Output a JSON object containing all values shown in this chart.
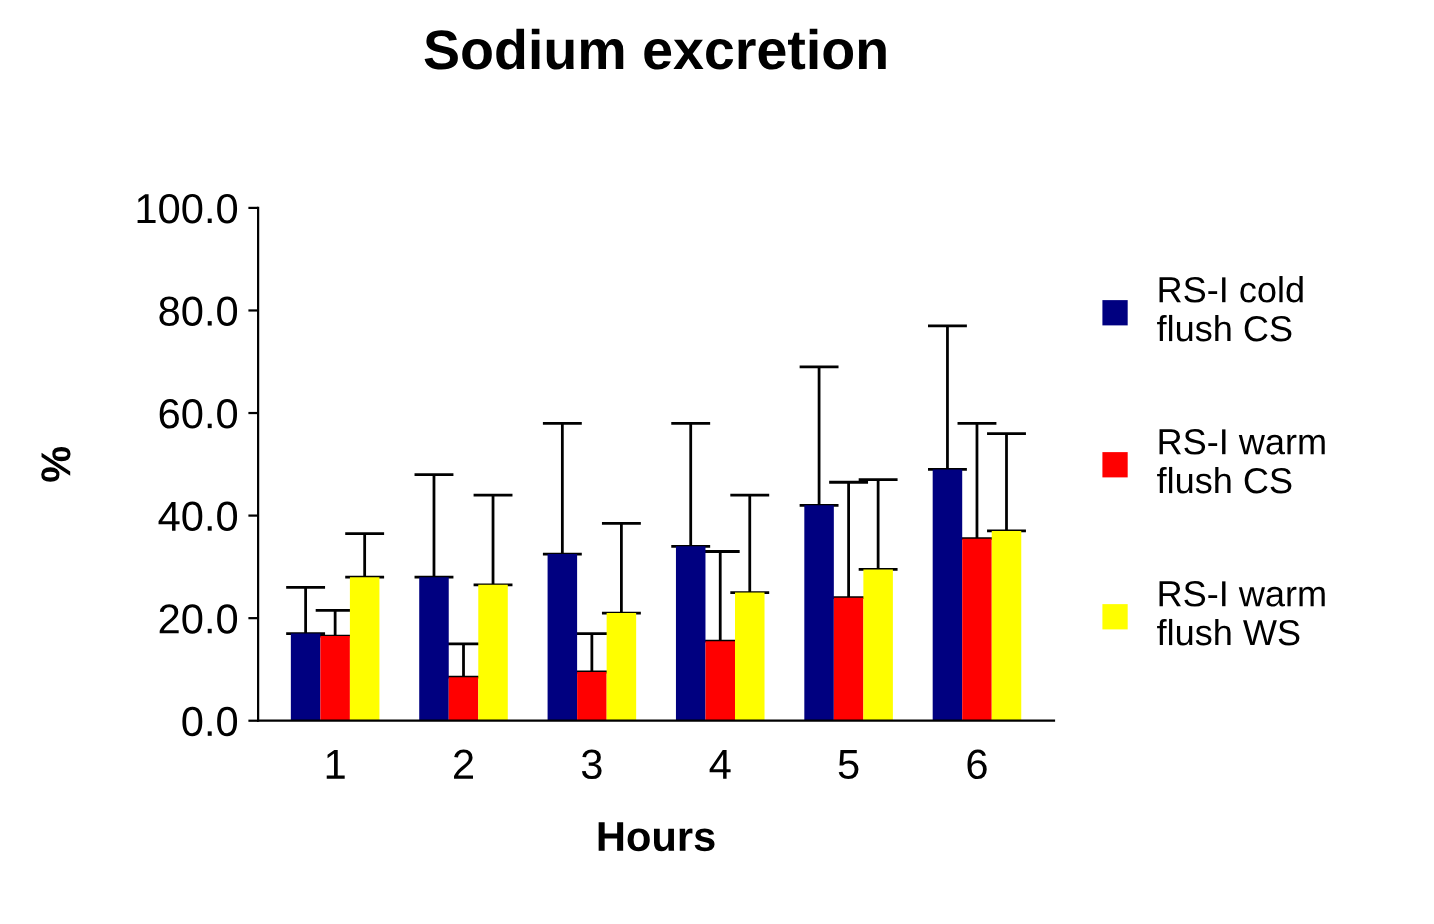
{
  "chart_data": {
    "type": "bar",
    "title": "Sodium excretion",
    "xlabel": "Hours",
    "ylabel": "%",
    "categories": [
      "1",
      "2",
      "3",
      "4",
      "5",
      "6"
    ],
    "series": [
      {
        "name": "RS-I cold\nflush CS",
        "color": "#000080",
        "values": [
          17,
          28,
          32.5,
          34,
          42,
          49
        ],
        "errors": [
          [
            17,
            26
          ],
          [
            28,
            48
          ],
          [
            32.5,
            58
          ],
          [
            34,
            58
          ],
          [
            42,
            69
          ],
          [
            49,
            77
          ]
        ]
      },
      {
        "name": "RS-I warm\nflush CS",
        "color": "#ff0000",
        "values": [
          16.5,
          8.5,
          9.5,
          15.5,
          24,
          35.5
        ],
        "errors": [
          [
            16.5,
            21.5
          ],
          [
            8.5,
            15
          ],
          [
            9.5,
            17
          ],
          [
            15.5,
            33
          ],
          [
            24,
            46.5
          ],
          [
            35.5,
            58
          ]
        ]
      },
      {
        "name": "RS-I warm\nflush WS",
        "color": "#ffff00",
        "values": [
          28,
          26.5,
          21,
          25,
          29.5,
          37
        ],
        "errors": [
          [
            28,
            36.5
          ],
          [
            26.5,
            44
          ],
          [
            21,
            38.5
          ],
          [
            25,
            44
          ],
          [
            29.5,
            47
          ],
          [
            37,
            56
          ]
        ]
      }
    ],
    "ylim": [
      0,
      100
    ],
    "yticks": [
      {
        "value": 0,
        "label": "0.0"
      },
      {
        "value": 20,
        "label": "20.0"
      },
      {
        "value": 40,
        "label": "40.0"
      },
      {
        "value": 60,
        "label": "60.0"
      },
      {
        "value": 80,
        "label": "80.0"
      },
      {
        "value": 100,
        "label": "100.0"
      }
    ],
    "grid": false,
    "legend": "right"
  }
}
